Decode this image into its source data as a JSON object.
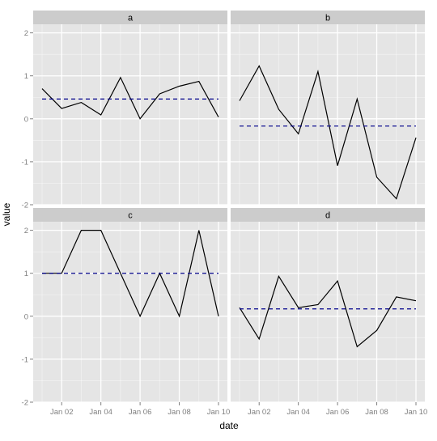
{
  "chart_data": {
    "type": "line",
    "xlabel": "date",
    "ylabel": "value",
    "x": [
      "Jan 01",
      "Jan 02",
      "Jan 03",
      "Jan 04",
      "Jan 05",
      "Jan 06",
      "Jan 07",
      "Jan 08",
      "Jan 09",
      "Jan 10"
    ],
    "x_ticks": [
      "Jan 02",
      "Jan 04",
      "Jan 06",
      "Jan 08",
      "Jan 10"
    ],
    "y_ticks": [
      "-2",
      "-1",
      "0",
      "1",
      "2"
    ],
    "ylim": [
      -2,
      2.2
    ],
    "grid": true,
    "colors": {
      "panel_bg": "#E5E5E5",
      "strip_bg": "#CCCCCC",
      "grid": "#FFFFFF",
      "series_line": "#000000",
      "mean_line": "#00008B"
    },
    "panels": [
      {
        "label": "a",
        "values": [
          0.7,
          0.24,
          0.38,
          0.09,
          0.96,
          0.0,
          0.58,
          0.76,
          0.87,
          0.04
        ],
        "mean": 0.46
      },
      {
        "label": "b",
        "values": [
          0.42,
          1.23,
          0.22,
          -0.35,
          1.1,
          -1.09,
          0.46,
          -1.36,
          -1.86,
          -0.44
        ],
        "mean": -0.17
      },
      {
        "label": "c",
        "values": [
          1,
          1,
          2,
          2,
          1,
          0,
          1,
          0,
          2,
          0
        ],
        "mean": 1.0
      },
      {
        "label": "d",
        "values": [
          0.2,
          -0.53,
          0.93,
          0.2,
          0.27,
          0.82,
          -0.71,
          -0.33,
          0.45,
          0.36
        ],
        "mean": 0.17
      }
    ]
  }
}
